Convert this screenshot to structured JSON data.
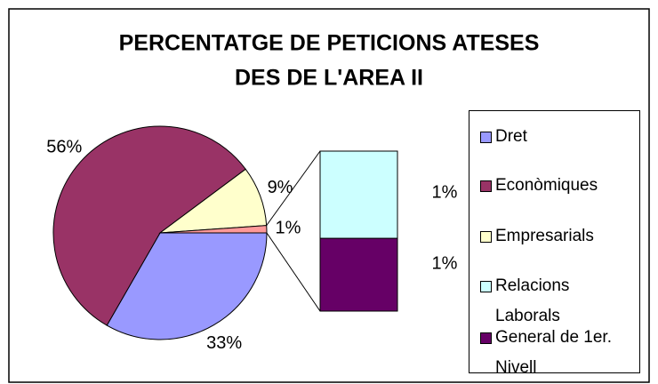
{
  "chart_data": {
    "type": "bar-of-pie",
    "title": [
      "PERCENTATGE DE PETICIONS ATESES",
      "DES DE L'AREA II"
    ],
    "categories": [
      "Dret",
      "Econòmiques",
      "Empresarials",
      "Relacions Laborals",
      "General de 1er. Nivell"
    ],
    "values": [
      33,
      56,
      9,
      0.6,
      0.5
    ],
    "value_labels": [
      "33%",
      "56%",
      "9%",
      "1%",
      "1%"
    ],
    "colors": [
      "#9999ff",
      "#993366",
      "#ffffcc",
      "#ccffff",
      "#660066"
    ],
    "other_label": "1%",
    "other_color": "#ff9999"
  }
}
